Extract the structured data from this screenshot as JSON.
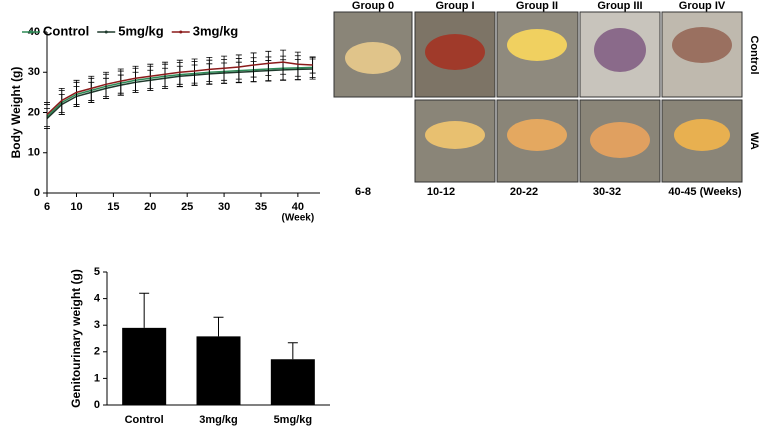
{
  "chart_data": [
    {
      "type": "line",
      "ylabel": "Body  Weight (g)",
      "xlabel": "(Week)",
      "x": [
        6,
        8,
        10,
        12,
        14,
        16,
        18,
        20,
        22,
        24,
        26,
        28,
        30,
        32,
        34,
        36,
        38,
        40,
        42
      ],
      "xlim": [
        6,
        43
      ],
      "xticks": [
        6,
        10,
        15,
        20,
        25,
        30,
        35,
        40
      ],
      "ylim": [
        0,
        40
      ],
      "yticks": [
        0,
        10,
        20,
        30,
        40
      ],
      "legend": "top",
      "series": [
        {
          "name": "Control",
          "color": "#2e8b57",
          "values": [
            19,
            22.5,
            24.5,
            25.5,
            26.5,
            27.3,
            28,
            28.5,
            29,
            29.4,
            29.7,
            30,
            30.2,
            30.4,
            30.6,
            30.8,
            31,
            31.1,
            31.2
          ],
          "errors": [
            3,
            3,
            3,
            3,
            3,
            3,
            3,
            3,
            3,
            3,
            3,
            3,
            3,
            3,
            3,
            3,
            3,
            3,
            2.5
          ]
        },
        {
          "name": "5mg/kg",
          "color": "#1e3a2c",
          "values": [
            18.5,
            22,
            24,
            25,
            26,
            26.8,
            27.5,
            28,
            28.5,
            29,
            29.3,
            29.6,
            29.8,
            30,
            30.2,
            30.4,
            30.6,
            30.7,
            30.8
          ],
          "errors": [
            2.5,
            2.5,
            2.5,
            2.5,
            2.5,
            2.5,
            2.5,
            2.5,
            2.5,
            2.5,
            2.5,
            2.5,
            2.5,
            2.5,
            2.5,
            2.5,
            2.5,
            2.5,
            2.5
          ]
        },
        {
          "name": "3mg/kg",
          "color": "#8b1a1a",
          "values": [
            19.5,
            23,
            25,
            26,
            27,
            27.8,
            28.5,
            29,
            29.5,
            30,
            30.3,
            30.7,
            31,
            31.3,
            31.8,
            32.2,
            32.5,
            32,
            31.8
          ],
          "errors": [
            3,
            3,
            3,
            3,
            3,
            3,
            3,
            3,
            3,
            3,
            3,
            3,
            3,
            3,
            3,
            3,
            3,
            3,
            2
          ]
        }
      ]
    },
    {
      "type": "bar",
      "ylabel": "Genitourinary weight (g)",
      "categories": [
        "Control",
        "3mg/kg",
        "5mg/kg"
      ],
      "values": [
        2.9,
        2.58,
        1.72
      ],
      "errors": [
        1.3,
        0.72,
        0.62
      ],
      "color": "#000000",
      "ylim": [
        0,
        5
      ],
      "yticks": [
        0,
        1,
        2,
        3,
        4,
        5
      ]
    }
  ],
  "photos": {
    "groups": [
      "Group  0",
      "Group  I",
      "Group  II",
      "Group  III",
      "Group  IV"
    ],
    "rows": [
      "Control",
      "WA"
    ],
    "weeks": [
      "6-8",
      "10-12",
      "20-22",
      "30-32",
      "40-45  (Weeks)"
    ]
  }
}
